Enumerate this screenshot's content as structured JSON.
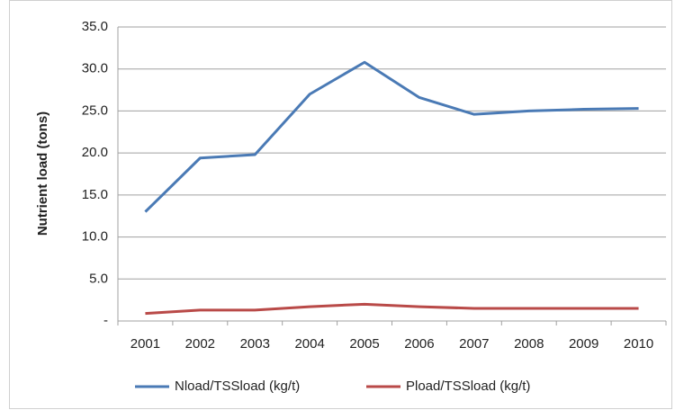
{
  "chart_data": {
    "type": "line",
    "y_label": "Nutrient load (tons)",
    "categories": [
      "2001",
      "2002",
      "2003",
      "2004",
      "2005",
      "2006",
      "2007",
      "2008",
      "2009",
      "2010"
    ],
    "series": [
      {
        "name": "Nload/TSSload (kg/t)",
        "color": "#4a7ab5",
        "values": [
          13.0,
          19.4,
          19.8,
          27.0,
          30.8,
          26.6,
          24.6,
          25.0,
          25.2,
          25.3
        ]
      },
      {
        "name": "Pload/TSSload (kg/t)",
        "color": "#b94a48",
        "values": [
          0.9,
          1.3,
          1.3,
          1.7,
          2.0,
          1.7,
          1.5,
          1.5,
          1.5,
          1.5
        ]
      }
    ],
    "ylim": [
      0,
      35
    ],
    "yticks": [
      {
        "value": 0,
        "label": "-"
      },
      {
        "value": 5,
        "label": "5.0"
      },
      {
        "value": 10,
        "label": "10.0"
      },
      {
        "value": 15,
        "label": "15.0"
      },
      {
        "value": 20,
        "label": "20.0"
      },
      {
        "value": 25,
        "label": "25.0"
      },
      {
        "value": 30,
        "label": "30.0"
      },
      {
        "value": 35,
        "label": "35.0"
      }
    ],
    "grid": true,
    "legend": "bottom"
  }
}
